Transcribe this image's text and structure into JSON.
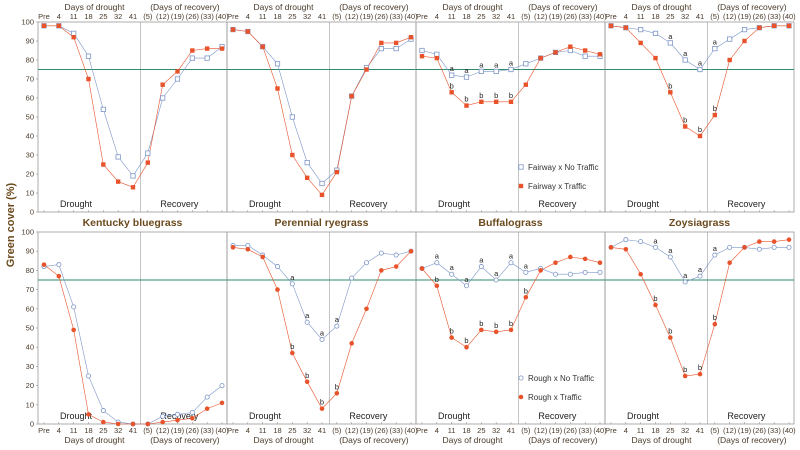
{
  "figure": {
    "y_axis_label": "Green cover (%)",
    "y_ticks": [
      "0",
      "10",
      "20",
      "30",
      "40",
      "50",
      "60",
      "70",
      "80",
      "90",
      "100"
    ],
    "x_ticks": [
      "Pre",
      "4",
      "11",
      "18",
      "25",
      "32",
      "41",
      "(5)",
      "(12)",
      "(19)",
      "(26)",
      "(33)",
      "(40)"
    ],
    "x_title_drought": "Days of drought",
    "x_title_recovery": "(Days of recovery)",
    "phase_drought": "Drought",
    "phase_recovery": "Recovery",
    "reference_line_value": 75,
    "legend_top": [
      "Fairway x No Traffic",
      "Fairway x Traffic"
    ],
    "legend_bottom": [
      "Rough x No Traffic",
      "Rough x Traffic"
    ],
    "grass_titles": [
      "Kentucky bluegrass",
      "Perennial ryegrass",
      "Buffalograss",
      "Zoysiagrass"
    ],
    "colors": {
      "no_traffic": "#7d96c8",
      "traffic": "#e8532b",
      "reference": "#2e8b6e",
      "divider": "#aaaaaa"
    }
  },
  "chart_data": [
    {
      "type": "line",
      "panel": "fairway-kentucky-bluegrass",
      "ylim": [
        0,
        100
      ],
      "categories": [
        "Pre",
        "4",
        "11",
        "18",
        "25",
        "32",
        "41",
        "(5)",
        "(12)",
        "(19)",
        "(26)",
        "(33)",
        "(40)"
      ],
      "series": [
        {
          "name": "Fairway x No Traffic",
          "values": [
            98,
            98,
            94,
            82,
            54,
            29,
            19,
            31,
            60,
            70,
            81,
            81,
            87
          ]
        },
        {
          "name": "Fairway x Traffic",
          "values": [
            98,
            98,
            92,
            70,
            25,
            16,
            13,
            26,
            67,
            74,
            85,
            86,
            86
          ]
        }
      ],
      "sig_labels": []
    },
    {
      "type": "line",
      "panel": "fairway-perennial-ryegrass",
      "ylim": [
        0,
        100
      ],
      "categories": [
        "Pre",
        "4",
        "11",
        "18",
        "25",
        "32",
        "41",
        "(5)",
        "(12)",
        "(19)",
        "(26)",
        "(33)",
        "(40)"
      ],
      "series": [
        {
          "name": "Fairway x No Traffic",
          "values": [
            96,
            95,
            87,
            78,
            50,
            26,
            15,
            22,
            61,
            76,
            86,
            86,
            91
          ]
        },
        {
          "name": "Fairway x Traffic",
          "values": [
            96,
            95,
            87,
            65,
            30,
            18,
            9,
            21,
            61,
            75,
            89,
            89,
            92
          ]
        }
      ],
      "sig_labels": []
    },
    {
      "type": "line",
      "panel": "fairway-buffalograss",
      "ylim": [
        0,
        100
      ],
      "categories": [
        "Pre",
        "4",
        "11",
        "18",
        "25",
        "32",
        "41",
        "(5)",
        "(12)",
        "(19)",
        "(26)",
        "(33)",
        "(40)"
      ],
      "series": [
        {
          "name": "Fairway x No Traffic",
          "values": [
            85,
            83,
            72,
            71,
            74,
            74,
            75,
            78,
            81,
            84,
            85,
            82,
            82
          ]
        },
        {
          "name": "Fairway x Traffic",
          "values": [
            82,
            81,
            63,
            56,
            58,
            58,
            58,
            67,
            81,
            84,
            87,
            85,
            83
          ]
        }
      ],
      "sig_labels": [
        {
          "idx": 2,
          "a": "a",
          "b": "b"
        },
        {
          "idx": 3,
          "a": "a",
          "b": "b"
        },
        {
          "idx": 4,
          "a": "a",
          "b": "b"
        },
        {
          "idx": 5,
          "a": "a",
          "b": "b"
        },
        {
          "idx": 6,
          "a": "a",
          "b": "b"
        }
      ]
    },
    {
      "type": "line",
      "panel": "fairway-zoysiagrass",
      "ylim": [
        0,
        100
      ],
      "categories": [
        "Pre",
        "4",
        "11",
        "18",
        "25",
        "32",
        "41",
        "(5)",
        "(12)",
        "(19)",
        "(26)",
        "(33)",
        "(40)"
      ],
      "series": [
        {
          "name": "Fairway x No Traffic",
          "values": [
            98,
            97,
            96,
            94,
            89,
            80,
            75,
            86,
            91,
            96,
            97,
            98,
            98
          ]
        },
        {
          "name": "Fairway x Traffic",
          "values": [
            98,
            97,
            89,
            81,
            63,
            45,
            40,
            51,
            80,
            90,
            97,
            98,
            98
          ]
        }
      ],
      "sig_labels": [
        {
          "idx": 4,
          "a": "a",
          "b": "b"
        },
        {
          "idx": 5,
          "a": "a",
          "b": "b"
        },
        {
          "idx": 6,
          "a": "a",
          "b": "b"
        },
        {
          "idx": 7,
          "a": "a",
          "b": "b"
        }
      ]
    },
    {
      "type": "line",
      "panel": "rough-kentucky-bluegrass",
      "ylim": [
        0,
        100
      ],
      "categories": [
        "Pre",
        "4",
        "11",
        "18",
        "25",
        "32",
        "41",
        "(5)",
        "(12)",
        "(19)",
        "(26)",
        "(33)",
        "(40)"
      ],
      "series": [
        {
          "name": "Rough x No Traffic",
          "values": [
            82,
            83,
            61,
            25,
            7,
            1,
            0,
            0,
            4,
            5,
            6,
            14,
            20
          ]
        },
        {
          "name": "Rough x Traffic",
          "values": [
            83,
            77,
            49,
            5,
            1,
            0,
            0,
            0,
            1,
            2,
            3,
            8,
            11
          ]
        }
      ],
      "sig_labels": []
    },
    {
      "type": "line",
      "panel": "rough-perennial-ryegrass",
      "ylim": [
        0,
        100
      ],
      "categories": [
        "Pre",
        "4",
        "11",
        "18",
        "25",
        "32",
        "41",
        "(5)",
        "(12)",
        "(19)",
        "(26)",
        "(33)",
        "(40)"
      ],
      "series": [
        {
          "name": "Rough x No Traffic",
          "values": [
            93,
            93,
            88,
            82,
            73,
            53,
            44,
            51,
            76,
            84,
            89,
            88,
            90
          ]
        },
        {
          "name": "Rough x Traffic",
          "values": [
            92,
            91,
            87,
            70,
            37,
            22,
            8,
            16,
            42,
            60,
            80,
            82,
            90
          ]
        }
      ],
      "sig_labels": [
        {
          "idx": 4,
          "a": "a",
          "b": "b"
        },
        {
          "idx": 5,
          "a": "a",
          "b": "b"
        },
        {
          "idx": 6,
          "a": "a",
          "b": "b"
        },
        {
          "idx": 7,
          "a": "a",
          "b": "b"
        }
      ]
    },
    {
      "type": "line",
      "panel": "rough-buffalograss",
      "ylim": [
        0,
        100
      ],
      "categories": [
        "Pre",
        "4",
        "11",
        "18",
        "25",
        "32",
        "41",
        "(5)",
        "(12)",
        "(19)",
        "(26)",
        "(33)",
        "(40)"
      ],
      "series": [
        {
          "name": "Rough x No Traffic",
          "values": [
            81,
            84,
            78,
            72,
            82,
            75,
            84,
            79,
            81,
            78,
            78,
            79,
            79
          ]
        },
        {
          "name": "Rough x Traffic",
          "values": [
            81,
            72,
            45,
            40,
            49,
            48,
            49,
            66,
            80,
            84,
            87,
            86,
            84
          ]
        }
      ],
      "sig_labels": [
        {
          "idx": 1,
          "a": "a",
          "b": "b"
        },
        {
          "idx": 2,
          "a": "a",
          "b": "b"
        },
        {
          "idx": 3,
          "a": "a",
          "b": "b"
        },
        {
          "idx": 4,
          "a": "a",
          "b": "b"
        },
        {
          "idx": 5,
          "a": "a",
          "b": "b"
        },
        {
          "idx": 6,
          "a": "a",
          "b": "b"
        },
        {
          "idx": 7,
          "a": "a",
          "b": "b"
        }
      ]
    },
    {
      "type": "line",
      "panel": "rough-zoysiagrass",
      "ylim": [
        0,
        100
      ],
      "categories": [
        "Pre",
        "4",
        "11",
        "18",
        "25",
        "32",
        "41",
        "(5)",
        "(12)",
        "(19)",
        "(26)",
        "(33)",
        "(40)"
      ],
      "series": [
        {
          "name": "Rough x No Traffic",
          "values": [
            92,
            96,
            95,
            92,
            87,
            74,
            77,
            88,
            92,
            92,
            91,
            92,
            92
          ]
        },
        {
          "name": "Rough x Traffic",
          "values": [
            92,
            91,
            78,
            62,
            45,
            25,
            26,
            52,
            84,
            92,
            95,
            95,
            96
          ]
        }
      ],
      "sig_labels": [
        {
          "idx": 3,
          "a": "a",
          "b": "b"
        },
        {
          "idx": 4,
          "a": "a",
          "b": "b"
        },
        {
          "idx": 5,
          "a": "a",
          "b": "b"
        },
        {
          "idx": 6,
          "a": "a",
          "b": "b"
        },
        {
          "idx": 7,
          "a": "a",
          "b": "b"
        }
      ]
    }
  ]
}
